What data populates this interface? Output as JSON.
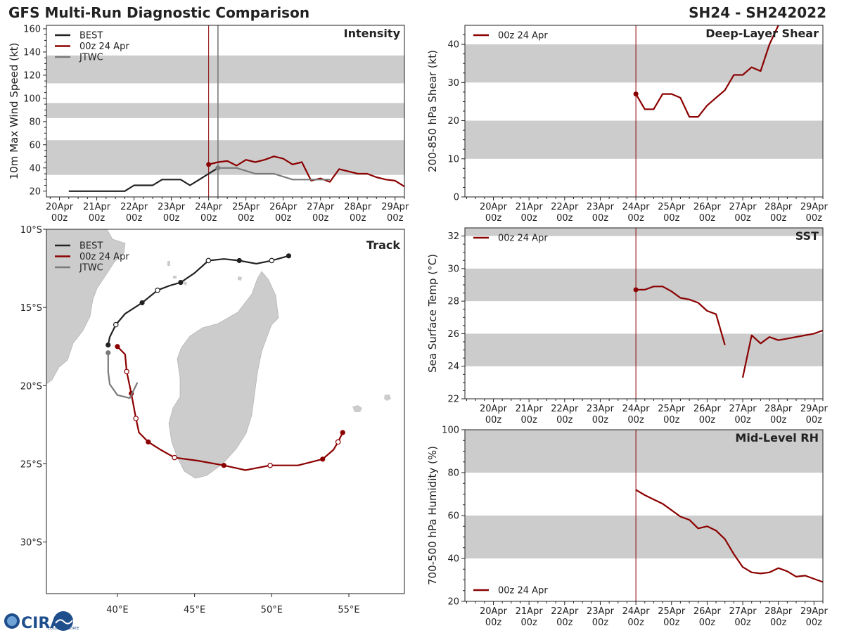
{
  "header": {
    "title": "GFS Multi-Run Diagnostic Comparison",
    "storm_id": "SH24 - SH242022"
  },
  "logo": {
    "text": "CIRA",
    "sub": "COLORADO STATE"
  },
  "colors": {
    "best": "#222222",
    "gfs": "#8b0000",
    "jtwc": "#7a7a7a",
    "band": "#cccccc",
    "land": "#cccccc",
    "cur": "#8b0000"
  },
  "time_axis": {
    "labels": [
      "20Apr",
      "21Apr",
      "22Apr",
      "23Apr",
      "24Apr",
      "25Apr",
      "26Apr",
      "27Apr",
      "28Apr",
      "29Apr"
    ],
    "sublabel": "00z"
  },
  "chart_data": [
    {
      "id": "intensity",
      "type": "line",
      "title": "Intensity",
      "ylabel": "10m Max Wind Speed (kt)",
      "xlim": [
        -0.35,
        9.25
      ],
      "ylim": [
        15,
        163
      ],
      "yticks": [
        20,
        40,
        60,
        80,
        100,
        120,
        140,
        160
      ],
      "bands": [
        [
          34,
          64
        ],
        [
          83,
          96
        ],
        [
          113,
          137
        ]
      ],
      "current_time": 4.0,
      "jtwc_time": 4.25,
      "legend": [
        "BEST",
        "00z 24 Apr",
        "JTWC"
      ],
      "series": [
        {
          "name": "BEST",
          "color_key": "best",
          "x": [
            0.25,
            0.5,
            0.75,
            1,
            1.25,
            1.5,
            1.75,
            2,
            2.25,
            2.5,
            2.75,
            3,
            3.25,
            3.5,
            3.75,
            4,
            4.25
          ],
          "y": [
            20,
            20,
            20,
            20,
            20,
            20,
            20,
            25,
            25,
            25,
            30,
            30,
            30,
            25,
            30,
            35,
            40
          ],
          "marker": "none"
        },
        {
          "name": "00z 24 Apr",
          "color_key": "gfs",
          "x": [
            4,
            4.25,
            4.5,
            4.75,
            5,
            5.25,
            5.5,
            5.75,
            6,
            6.25,
            6.5,
            6.75,
            7,
            7.25,
            7.5,
            7.75,
            8,
            8.25,
            8.5,
            8.75,
            9,
            9.25
          ],
          "y": [
            43,
            45,
            46,
            42,
            47,
            45,
            47,
            50,
            48,
            43,
            45,
            29,
            31,
            28,
            39,
            37,
            35,
            35,
            32,
            30,
            29,
            24
          ],
          "marker": "start"
        },
        {
          "name": "JTWC",
          "color_key": "jtwc",
          "x": [
            4.25,
            4.75,
            5.25,
            5.75,
            6.25,
            6.75,
            7.25
          ],
          "y": [
            40,
            40,
            35,
            35,
            30,
            30,
            30
          ],
          "marker": "start"
        }
      ]
    },
    {
      "id": "shear",
      "type": "line",
      "title": "Deep-Layer Shear",
      "ylabel": "200-850 hPa Shear (kt)",
      "xlim": [
        -0.8,
        9.25
      ],
      "ylim": [
        0,
        45
      ],
      "yticks": [
        0,
        10,
        20,
        30,
        40
      ],
      "bands": [
        [
          10,
          20
        ],
        [
          30,
          40
        ]
      ],
      "current_time": 4.0,
      "legend": [
        "00z 24 Apr"
      ],
      "series": [
        {
          "name": "00z 24 Apr",
          "color_key": "gfs",
          "x": [
            4,
            4.25,
            4.5,
            4.75,
            5,
            5.25,
            5.5,
            5.75,
            6,
            6.25,
            6.5,
            6.75,
            7,
            7.25,
            7.5,
            7.75,
            8
          ],
          "y": [
            27,
            23,
            23,
            27,
            27,
            26,
            21,
            21,
            24,
            26,
            28,
            32,
            32,
            34,
            33,
            40,
            45
          ],
          "marker": "start"
        }
      ]
    },
    {
      "id": "sst",
      "type": "line",
      "title": "SST",
      "ylabel": "Sea Surface Temp (°C)",
      "xlim": [
        -0.8,
        9.25
      ],
      "ylim": [
        22,
        32.5
      ],
      "yticks": [
        22,
        24,
        26,
        28,
        30,
        32
      ],
      "bands": [
        [
          24,
          26
        ],
        [
          28,
          30
        ],
        [
          32,
          32.5
        ]
      ],
      "current_time": 4.0,
      "legend": [
        "00z 24 Apr"
      ],
      "series": [
        {
          "name": "00z 24 Apr",
          "color_key": "gfs",
          "x": [
            4,
            4.25,
            4.5,
            4.75,
            5,
            5.25,
            5.5,
            5.75,
            6,
            6.25,
            6.5
          ],
          "y": [
            28.7,
            28.7,
            28.9,
            28.9,
            28.6,
            28.2,
            28.1,
            27.9,
            27.4,
            27.2,
            25.3
          ],
          "marker": "start"
        },
        {
          "name": "00z 24 Apr (cont.)",
          "color_key": "gfs",
          "x": [
            7,
            7.25,
            7.5,
            7.75,
            8,
            8.25,
            8.5,
            8.75,
            9,
            9.25
          ],
          "y": [
            23.3,
            25.9,
            25.4,
            25.8,
            25.6,
            25.7,
            25.8,
            25.9,
            26.0,
            26.2
          ],
          "marker": "none"
        }
      ]
    },
    {
      "id": "rh",
      "type": "line",
      "title": "Mid-Level RH",
      "ylabel": "700-500 hPa Humidity (%)",
      "xlim": [
        -0.8,
        9.25
      ],
      "ylim": [
        20,
        100
      ],
      "yticks": [
        20,
        40,
        60,
        80,
        100
      ],
      "bands": [
        [
          40,
          60
        ],
        [
          80,
          100
        ]
      ],
      "current_time": 4.0,
      "legend": [
        "00z 24 Apr"
      ],
      "series": [
        {
          "name": "00z 24 Apr",
          "color_key": "gfs",
          "x": [
            4,
            4.25,
            4.5,
            4.75,
            5,
            5.25,
            5.5,
            5.75,
            6,
            6.25,
            6.5,
            6.75,
            7,
            7.25,
            7.5,
            7.75,
            8,
            8.25,
            8.5,
            8.75,
            9,
            9.25
          ],
          "y": [
            72,
            69.5,
            67.5,
            65.5,
            62.5,
            59.5,
            58,
            54,
            55,
            53,
            49,
            42,
            36,
            33.5,
            33,
            33.5,
            35.5,
            34,
            31.5,
            32,
            30.5,
            29
          ]
        }
      ]
    },
    {
      "id": "track",
      "type": "scatter",
      "title": "Track",
      "xlim": [
        35.4,
        58.6
      ],
      "ylim": [
        -33.3,
        -10
      ],
      "xticks": [
        40,
        45,
        50,
        55
      ],
      "xticklabels": [
        "40°E",
        "45°E",
        "50°E",
        "55°E"
      ],
      "yticks": [
        -10,
        -15,
        -20,
        -25,
        -30
      ],
      "yticklabels": [
        "10°S",
        "15°S",
        "20°S",
        "25°S",
        "30°S"
      ],
      "legend": [
        "BEST",
        "00z 24 Apr",
        "JTWC"
      ],
      "series": [
        {
          "name": "BEST",
          "color_key": "best",
          "lon": [
            51.1,
            50,
            49,
            47.9,
            46.9,
            45.9,
            45,
            44.1,
            43.4,
            42.6,
            41.6,
            40.5,
            39.9,
            39.5,
            39.4
          ],
          "lat": [
            -11.7,
            -12.0,
            -12.2,
            -12.0,
            -11.9,
            -12.0,
            -12.8,
            -13.4,
            -13.6,
            -13.9,
            -14.7,
            -15.4,
            -16.1,
            -16.9,
            -17.4
          ],
          "filled": [
            true,
            false,
            false,
            true,
            false,
            false,
            false,
            true,
            false,
            false,
            true,
            false,
            false,
            false,
            true
          ],
          "opened": [
            false,
            true,
            false,
            false,
            false,
            true,
            false,
            false,
            false,
            true,
            false,
            false,
            true,
            false,
            false
          ]
        },
        {
          "name": "00z 24 Apr",
          "color_key": "gfs",
          "lon": [
            40.0,
            40.5,
            40.6,
            40.9,
            41.2,
            41.4,
            42.0,
            42.8,
            43.7,
            45.2,
            46.9,
            48.3,
            49.9,
            51.7,
            53.3,
            54.0,
            54.3,
            54.6
          ],
          "lat": [
            -17.5,
            -18.0,
            -19.1,
            -20.5,
            -22.1,
            -23.0,
            -23.6,
            -24.1,
            -24.6,
            -24.8,
            -25.1,
            -25.4,
            -25.1,
            -25.1,
            -24.7,
            -24.1,
            -23.6,
            -23.0
          ],
          "filled": [
            true,
            false,
            false,
            true,
            false,
            false,
            true,
            false,
            false,
            false,
            true,
            false,
            false,
            false,
            true,
            false,
            false,
            true
          ],
          "opened": [
            false,
            false,
            true,
            false,
            true,
            false,
            false,
            false,
            true,
            false,
            false,
            false,
            true,
            false,
            false,
            false,
            true,
            false
          ]
        },
        {
          "name": "JTWC",
          "color_key": "jtwc",
          "lon": [
            39.4,
            39.4,
            39.5,
            40.0,
            40.8,
            41.3
          ],
          "lat": [
            -17.9,
            -19.1,
            -19.9,
            -20.6,
            -20.8,
            -19.8
          ],
          "filled": [
            true,
            false,
            false,
            false,
            false,
            false
          ],
          "opened": [
            false,
            false,
            false,
            false,
            false,
            false
          ]
        }
      ]
    }
  ]
}
